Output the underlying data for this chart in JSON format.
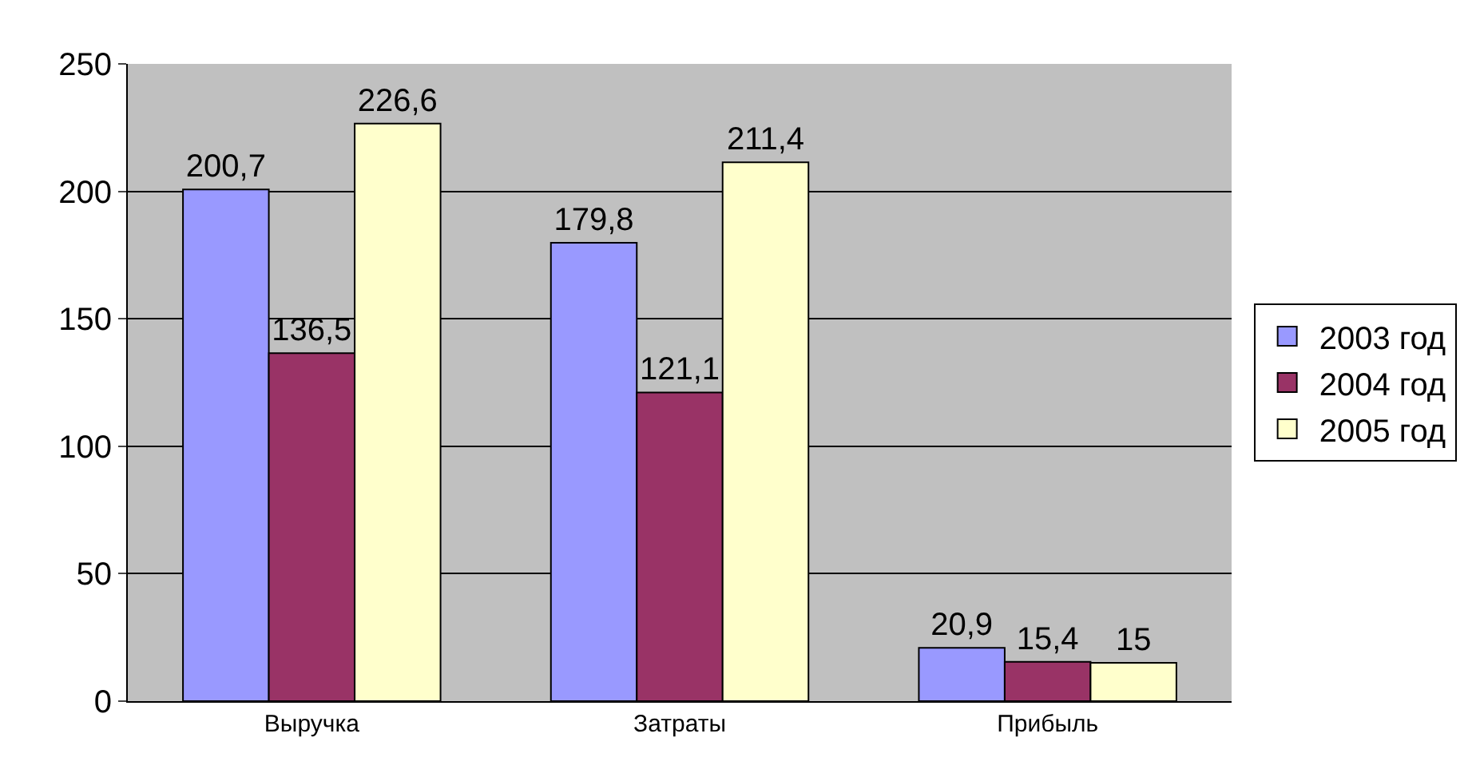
{
  "chart_data": {
    "type": "bar",
    "categories": [
      "Выручка",
      "Затраты",
      "Прибыль"
    ],
    "series": [
      {
        "name": "2003 год",
        "color": "#9999ff",
        "values": [
          200.7,
          179.8,
          20.9
        ],
        "value_labels": [
          "200,7",
          "179,8",
          "20,9"
        ]
      },
      {
        "name": "2004 год",
        "color": "#993366",
        "values": [
          136.5,
          121.1,
          15.4
        ],
        "value_labels": [
          "136,5",
          "121,1",
          "15,4"
        ]
      },
      {
        "name": "2005 год",
        "color": "#ffffcc",
        "values": [
          226.6,
          211.4,
          15
        ],
        "value_labels": [
          "226,6",
          "211,4",
          "15"
        ]
      }
    ],
    "ylim": [
      0,
      250
    ],
    "yticks": [
      0,
      50,
      100,
      150,
      200,
      250
    ],
    "grid": "y",
    "legend": "right"
  }
}
